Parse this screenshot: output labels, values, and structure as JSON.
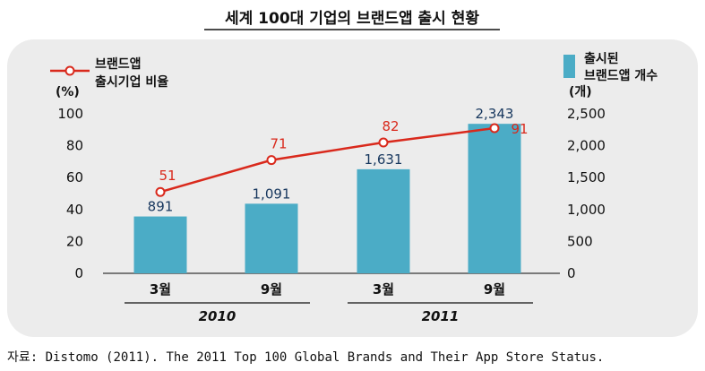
{
  "title": "세계 100대 기업의 브랜드앱 출시 현황",
  "source": "자료: Distomo (2011). The 2011 Top 100 Global Brands and Their App Store Status.",
  "colors": {
    "bar": "#4bacc6",
    "line": "#d9291c",
    "panel": "#ececec",
    "bar_label": "#17375e"
  },
  "chart_data": {
    "type": "bar",
    "categories": [
      "3월",
      "9월",
      "3월",
      "9월"
    ],
    "groups": [
      {
        "label": "2010",
        "categories": [
          0,
          1
        ]
      },
      {
        "label": "2011",
        "categories": [
          2,
          3
        ]
      }
    ],
    "series": [
      {
        "name": "출시된 브랜드앱 개수",
        "kind": "bar",
        "axis": "right",
        "values": [
          891,
          1091,
          1631,
          2343
        ],
        "labels": [
          "891",
          "1,091",
          "1,631",
          "2,343"
        ]
      },
      {
        "name": "브랜드앱 출시기업 비율",
        "kind": "line",
        "axis": "left",
        "values": [
          51,
          71,
          82,
          91
        ],
        "labels": [
          "51",
          "71",
          "82",
          "91"
        ]
      }
    ],
    "left_axis": {
      "unit": "(%)",
      "ylim": [
        0,
        100
      ],
      "ticks": [
        "0",
        "20",
        "40",
        "60",
        "80",
        "100"
      ],
      "tick_values": [
        0,
        20,
        40,
        60,
        80,
        100
      ]
    },
    "right_axis": {
      "unit": "(개)",
      "ylim": [
        0,
        2500
      ],
      "ticks": [
        "0",
        "500",
        "1,000",
        "1,500",
        "2,000",
        "2,500"
      ],
      "tick_values": [
        0,
        500,
        1000,
        1500,
        2000,
        2500
      ]
    },
    "legend": {
      "line_lines": [
        "브랜드앱",
        "출시기업 비율"
      ],
      "bar_lines": [
        "출시된",
        "브랜드앱 개수"
      ],
      "placement": "top"
    },
    "grid": false
  }
}
